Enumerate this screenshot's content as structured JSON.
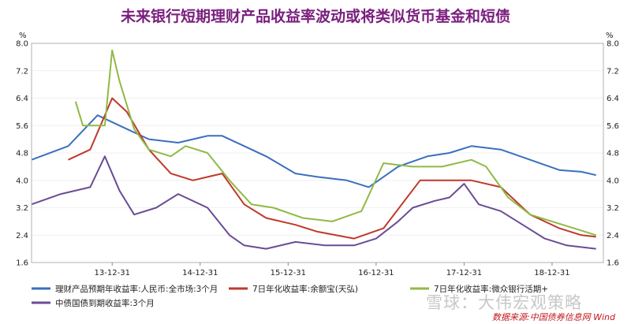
{
  "chart_data": {
    "type": "line",
    "title": "未来银行短期理财产品收益率波动或将类似货币基金和短债",
    "unit_left": "%",
    "unit_right": "%",
    "ylim": [
      1.6,
      8.0
    ],
    "yticks": [
      "8.0",
      "7.2",
      "6.4",
      "5.6",
      "4.8",
      "4.0",
      "3.2",
      "2.4",
      "1.6"
    ],
    "xticks": [
      "13-12-31",
      "14-12-31",
      "15-12-31",
      "16-12-31",
      "17-12-31",
      "18-12-31"
    ],
    "x_range": [
      "2013-01",
      "2019-07"
    ],
    "series": [
      {
        "name": "理财产品预期年收益率:人民币:全市场:3个月",
        "color": "#3a6fbf",
        "x": [
          "2013-01",
          "2013-06",
          "2013-10",
          "2014-01",
          "2014-05",
          "2014-09",
          "2015-01",
          "2015-03",
          "2015-06",
          "2015-09",
          "2016-01",
          "2016-04",
          "2016-08",
          "2016-11",
          "2017-03",
          "2017-07",
          "2017-10",
          "2018-01",
          "2018-05",
          "2018-09",
          "2019-01",
          "2019-04",
          "2019-06"
        ],
        "values": [
          4.6,
          5.0,
          5.9,
          5.6,
          5.2,
          5.1,
          5.3,
          5.3,
          5.0,
          4.7,
          4.2,
          4.1,
          4.0,
          3.8,
          4.4,
          4.7,
          4.8,
          5.0,
          4.9,
          4.6,
          4.3,
          4.25,
          4.15
        ]
      },
      {
        "name": "7日年化收益率:余额宝(天弘)",
        "color": "#c0392b",
        "x": [
          "2013-06",
          "2013-09",
          "2013-12",
          "2014-02",
          "2014-05",
          "2014-08",
          "2014-11",
          "2015-03",
          "2015-06",
          "2015-09",
          "2016-01",
          "2016-04",
          "2016-09",
          "2017-01",
          "2017-06",
          "2017-10",
          "2018-01",
          "2018-05",
          "2018-09",
          "2019-01",
          "2019-04",
          "2019-06"
        ],
        "values": [
          4.6,
          4.9,
          6.4,
          6.0,
          4.9,
          4.2,
          4.0,
          4.2,
          3.3,
          2.9,
          2.7,
          2.5,
          2.3,
          2.6,
          4.0,
          4.0,
          4.0,
          3.8,
          3.0,
          2.6,
          2.4,
          2.35
        ]
      },
      {
        "name": "7日年化收益率:微众银行活期+",
        "color": "#8fba45",
        "x": [
          "2013-07",
          "2013-08",
          "2013-11",
          "2013-12",
          "2014-01",
          "2014-03",
          "2014-05",
          "2014-08",
          "2014-10",
          "2015-01",
          "2015-04",
          "2015-07",
          "2015-10",
          "2016-02",
          "2016-06",
          "2016-10",
          "2017-01",
          "2017-05",
          "2017-09",
          "2018-01",
          "2018-03",
          "2018-06",
          "2018-09",
          "2018-12",
          "2019-03",
          "2019-06"
        ],
        "values": [
          6.3,
          5.6,
          5.6,
          7.8,
          6.9,
          5.5,
          4.9,
          4.7,
          5.0,
          4.8,
          4.0,
          3.3,
          3.2,
          2.9,
          2.8,
          3.1,
          4.5,
          4.4,
          4.4,
          4.6,
          4.4,
          3.5,
          3.0,
          2.8,
          2.6,
          2.4
        ]
      },
      {
        "name": "中债国债到期收益率:3个月",
        "color": "#6a4c93",
        "x": [
          "2013-01",
          "2013-05",
          "2013-09",
          "2013-11",
          "2014-01",
          "2014-03",
          "2014-06",
          "2014-09",
          "2015-01",
          "2015-04",
          "2015-06",
          "2015-09",
          "2016-01",
          "2016-05",
          "2016-09",
          "2016-12",
          "2017-03",
          "2017-05",
          "2017-08",
          "2017-10",
          "2017-12",
          "2018-02",
          "2018-05",
          "2018-08",
          "2018-11",
          "2019-02",
          "2019-06"
        ],
        "values": [
          3.3,
          3.6,
          3.8,
          4.7,
          3.7,
          3.0,
          3.2,
          3.6,
          3.2,
          2.4,
          2.1,
          2.0,
          2.2,
          2.1,
          2.1,
          2.3,
          2.8,
          3.2,
          3.4,
          3.5,
          3.9,
          3.3,
          3.1,
          2.7,
          2.3,
          2.1,
          2.0
        ]
      }
    ]
  },
  "source_text": "数据来源:中国债券信息网 Wind",
  "watermark_text": "雪球：大伟宏观策略"
}
